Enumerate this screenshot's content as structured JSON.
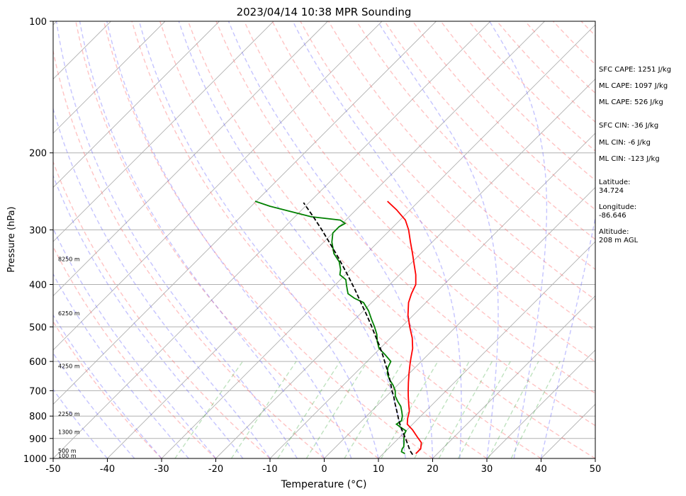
{
  "chart_data": {
    "type": "line",
    "title": "2023/04/14 10:38 MPR Sounding",
    "xlabel": "Temperature (°C)",
    "ylabel": "Pressure (hPa)",
    "xlim": [
      -50,
      50
    ],
    "ylim": [
      1000,
      100
    ],
    "y_scale": "log",
    "skew": true,
    "grid": true,
    "x_ticks": [
      -50,
      -40,
      -30,
      -20,
      -10,
      0,
      10,
      20,
      30,
      40,
      50
    ],
    "y_ticks": [
      1000,
      900,
      800,
      700,
      600,
      500,
      400,
      300,
      200,
      100
    ],
    "height_labels": [
      {
        "p": 985,
        "label": "100 m"
      },
      {
        "p": 960,
        "label": "500 m"
      },
      {
        "p": 870,
        "label": "1300 m"
      },
      {
        "p": 790,
        "label": "2250 m"
      },
      {
        "p": 615,
        "label": "4250 m"
      },
      {
        "p": 465,
        "label": "6250 m"
      },
      {
        "p": 350,
        "label": "8250 m"
      }
    ],
    "series": [
      {
        "color": "#ff0000",
        "points": [
          [
            975,
            16
          ],
          [
            950,
            16
          ],
          [
            920,
            15
          ],
          [
            890,
            13
          ],
          [
            860,
            11
          ],
          [
            835,
            9
          ],
          [
            810,
            8
          ],
          [
            780,
            7
          ],
          [
            750,
            5.5
          ],
          [
            720,
            4
          ],
          [
            700,
            3
          ],
          [
            670,
            1.5
          ],
          [
            640,
            0
          ],
          [
            610,
            -1.5
          ],
          [
            590,
            -2.5
          ],
          [
            560,
            -4
          ],
          [
            530,
            -6
          ],
          [
            500,
            -8.5
          ],
          [
            470,
            -11
          ],
          [
            440,
            -13.2
          ],
          [
            420,
            -14.3
          ],
          [
            400,
            -15.2
          ],
          [
            380,
            -17
          ],
          [
            360,
            -19.2
          ],
          [
            340,
            -21.5
          ],
          [
            320,
            -24
          ],
          [
            300,
            -26.6
          ],
          [
            285,
            -29
          ],
          [
            270,
            -32.5
          ],
          [
            258,
            -35.8
          ]
        ]
      },
      {
        "color": "#008000",
        "points": [
          [
            975,
            14
          ],
          [
            965,
            13
          ],
          [
            950,
            12.6
          ],
          [
            940,
            12.5
          ],
          [
            920,
            11.8
          ],
          [
            900,
            11
          ],
          [
            880,
            10.3
          ],
          [
            865,
            10
          ],
          [
            850,
            8.5
          ],
          [
            835,
            7
          ],
          [
            820,
            7.3
          ],
          [
            800,
            6.6
          ],
          [
            780,
            5.6
          ],
          [
            760,
            4.5
          ],
          [
            740,
            3
          ],
          [
            720,
            1.6
          ],
          [
            700,
            0.6
          ],
          [
            680,
            -0.8
          ],
          [
            660,
            -2.5
          ],
          [
            640,
            -4
          ],
          [
            620,
            -5
          ],
          [
            600,
            -5.6
          ],
          [
            580,
            -7.8
          ],
          [
            560,
            -10.2
          ],
          [
            540,
            -11.8
          ],
          [
            520,
            -13.2
          ],
          [
            500,
            -15
          ],
          [
            480,
            -17
          ],
          [
            460,
            -19
          ],
          [
            440,
            -21.5
          ],
          [
            430,
            -24
          ],
          [
            420,
            -26
          ],
          [
            410,
            -27
          ],
          [
            400,
            -28
          ],
          [
            390,
            -29
          ],
          [
            380,
            -31
          ],
          [
            370,
            -31.8
          ],
          [
            355,
            -33.5
          ],
          [
            340,
            -36
          ],
          [
            320,
            -38.5
          ],
          [
            305,
            -40
          ],
          [
            295,
            -40
          ],
          [
            290,
            -39.5
          ],
          [
            285,
            -41
          ],
          [
            280,
            -47
          ],
          [
            272,
            -52
          ],
          [
            265,
            -56.5
          ],
          [
            258,
            -60.2
          ]
        ]
      },
      {
        "color": "#000000",
        "dashed": true,
        "points": [
          [
            980,
            15.6
          ],
          [
            960,
            14.4
          ],
          [
            930,
            12.9
          ],
          [
            900,
            11.3
          ],
          [
            870,
            9.6
          ],
          [
            840,
            7.9
          ],
          [
            810,
            6.3
          ],
          [
            780,
            4.7
          ],
          [
            750,
            3
          ],
          [
            720,
            1.3
          ],
          [
            700,
            0
          ],
          [
            670,
            -1.8
          ],
          [
            640,
            -3.8
          ],
          [
            610,
            -6
          ],
          [
            580,
            -8.3
          ],
          [
            550,
            -10.8
          ],
          [
            520,
            -13.6
          ],
          [
            500,
            -15.5
          ],
          [
            470,
            -18.6
          ],
          [
            440,
            -22
          ],
          [
            410,
            -25.6
          ],
          [
            380,
            -29.6
          ],
          [
            360,
            -32.5
          ],
          [
            340,
            -35.6
          ],
          [
            320,
            -39
          ],
          [
            300,
            -42.6
          ],
          [
            280,
            -46.6
          ],
          [
            260,
            -51
          ]
        ]
      }
    ]
  },
  "stats": [
    {
      "text": "SFC CAPE: 1251 J/kg"
    },
    {
      "text": "ML CAPE: 1097 J/kg"
    },
    {
      "text": "ML CAPE: 526 J/kg"
    },
    {
      "text": "SFC CIN: -36 J/kg"
    },
    {
      "text": "ML CIN: -6 J/kg"
    },
    {
      "text": "ML CIN: -123 J/kg"
    },
    {
      "label": "Latitude:",
      "value": "34.724"
    },
    {
      "label": "Longitude:",
      "value": "-86.646"
    },
    {
      "label": "Altitude:",
      "value": "208 m AGL"
    }
  ]
}
